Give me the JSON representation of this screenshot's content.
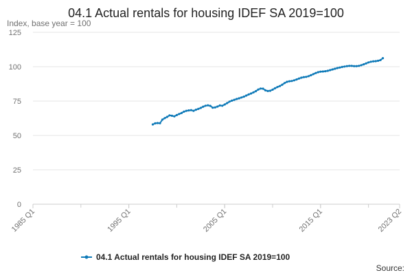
{
  "chart_data": {
    "type": "line",
    "title": "04.1 Actual rentals for housing IDEF SA 2019=100",
    "ylabel": "Index, base year = 100",
    "xlabel": "",
    "ylim": [
      0,
      125
    ],
    "yticks": [
      0,
      25,
      50,
      75,
      100,
      125
    ],
    "x_range": [
      "1985 Q1",
      "2023 Q2"
    ],
    "xticks": [
      "1985 Q1",
      "1995 Q1",
      "2005 Q1",
      "2015 Q1",
      "2023 Q2"
    ],
    "grid": true,
    "legend_position": "bottom",
    "source_label": "Source:",
    "series": [
      {
        "name": "04.1 Actual rentals for housing IDEF SA 2019=100",
        "color": "#0f7ab8",
        "points": [
          [
            "1997 Q3",
            58.0
          ],
          [
            "1997 Q4",
            58.8
          ],
          [
            "1998 Q1",
            59.0
          ],
          [
            "1998 Q2",
            58.9
          ],
          [
            "1998 Q3",
            61.5
          ],
          [
            "1998 Q4",
            62.6
          ],
          [
            "1999 Q1",
            63.5
          ],
          [
            "1999 Q2",
            64.6
          ],
          [
            "1999 Q3",
            64.3
          ],
          [
            "1999 Q4",
            63.9
          ],
          [
            "2000 Q1",
            64.8
          ],
          [
            "2000 Q2",
            65.6
          ],
          [
            "2000 Q3",
            66.3
          ],
          [
            "2000 Q4",
            67.3
          ],
          [
            "2001 Q1",
            67.9
          ],
          [
            "2001 Q2",
            68.2
          ],
          [
            "2001 Q3",
            68.4
          ],
          [
            "2001 Q4",
            67.9
          ],
          [
            "2002 Q1",
            68.7
          ],
          [
            "2002 Q2",
            69.3
          ],
          [
            "2002 Q3",
            70.0
          ],
          [
            "2002 Q4",
            70.9
          ],
          [
            "2003 Q1",
            71.6
          ],
          [
            "2003 Q2",
            71.9
          ],
          [
            "2003 Q3",
            71.5
          ],
          [
            "2003 Q4",
            70.2
          ],
          [
            "2004 Q1",
            70.4
          ],
          [
            "2004 Q2",
            71.0
          ],
          [
            "2004 Q3",
            71.8
          ],
          [
            "2004 Q4",
            71.6
          ],
          [
            "2005 Q1",
            72.5
          ],
          [
            "2005 Q2",
            73.5
          ],
          [
            "2005 Q3",
            74.6
          ],
          [
            "2005 Q4",
            75.3
          ],
          [
            "2006 Q1",
            75.9
          ],
          [
            "2006 Q2",
            76.5
          ],
          [
            "2006 Q3",
            77.0
          ],
          [
            "2006 Q4",
            77.6
          ],
          [
            "2007 Q1",
            78.2
          ],
          [
            "2007 Q2",
            79.0
          ],
          [
            "2007 Q3",
            79.8
          ],
          [
            "2007 Q4",
            80.5
          ],
          [
            "2008 Q1",
            81.3
          ],
          [
            "2008 Q2",
            82.2
          ],
          [
            "2008 Q3",
            83.4
          ],
          [
            "2008 Q4",
            84.1
          ],
          [
            "2009 Q1",
            84.0
          ],
          [
            "2009 Q2",
            82.8
          ],
          [
            "2009 Q3",
            82.3
          ],
          [
            "2009 Q4",
            82.5
          ],
          [
            "2010 Q1",
            83.3
          ],
          [
            "2010 Q2",
            84.3
          ],
          [
            "2010 Q3",
            85.2
          ],
          [
            "2010 Q4",
            85.9
          ],
          [
            "2011 Q1",
            86.9
          ],
          [
            "2011 Q2",
            88.1
          ],
          [
            "2011 Q3",
            89.0
          ],
          [
            "2011 Q4",
            89.4
          ],
          [
            "2012 Q1",
            89.6
          ],
          [
            "2012 Q2",
            90.1
          ],
          [
            "2012 Q3",
            90.7
          ],
          [
            "2012 Q4",
            91.4
          ],
          [
            "2013 Q1",
            92.0
          ],
          [
            "2013 Q2",
            92.4
          ],
          [
            "2013 Q3",
            92.6
          ],
          [
            "2013 Q4",
            93.1
          ],
          [
            "2014 Q1",
            93.8
          ],
          [
            "2014 Q2",
            94.6
          ],
          [
            "2014 Q3",
            95.4
          ],
          [
            "2014 Q4",
            96.0
          ],
          [
            "2015 Q1",
            96.4
          ],
          [
            "2015 Q2",
            96.5
          ],
          [
            "2015 Q3",
            96.7
          ],
          [
            "2015 Q4",
            97.0
          ],
          [
            "2016 Q1",
            97.5
          ],
          [
            "2016 Q2",
            98.0
          ],
          [
            "2016 Q3",
            98.5
          ],
          [
            "2016 Q4",
            99.0
          ],
          [
            "2017 Q1",
            99.4
          ],
          [
            "2017 Q2",
            99.8
          ],
          [
            "2017 Q3",
            100.1
          ],
          [
            "2017 Q4",
            100.4
          ],
          [
            "2018 Q1",
            100.6
          ],
          [
            "2018 Q2",
            100.6
          ],
          [
            "2018 Q3",
            100.4
          ],
          [
            "2018 Q4",
            100.4
          ],
          [
            "2019 Q1",
            100.6
          ],
          [
            "2019 Q2",
            101.1
          ],
          [
            "2019 Q3",
            101.7
          ],
          [
            "2019 Q4",
            102.4
          ],
          [
            "2020 Q1",
            103.1
          ],
          [
            "2020 Q2",
            103.6
          ],
          [
            "2020 Q3",
            103.9
          ],
          [
            "2020 Q4",
            104.0
          ],
          [
            "2021 Q1",
            104.3
          ],
          [
            "2021 Q2",
            104.8
          ],
          [
            "2021 Q3",
            106.2
          ]
        ]
      }
    ]
  }
}
